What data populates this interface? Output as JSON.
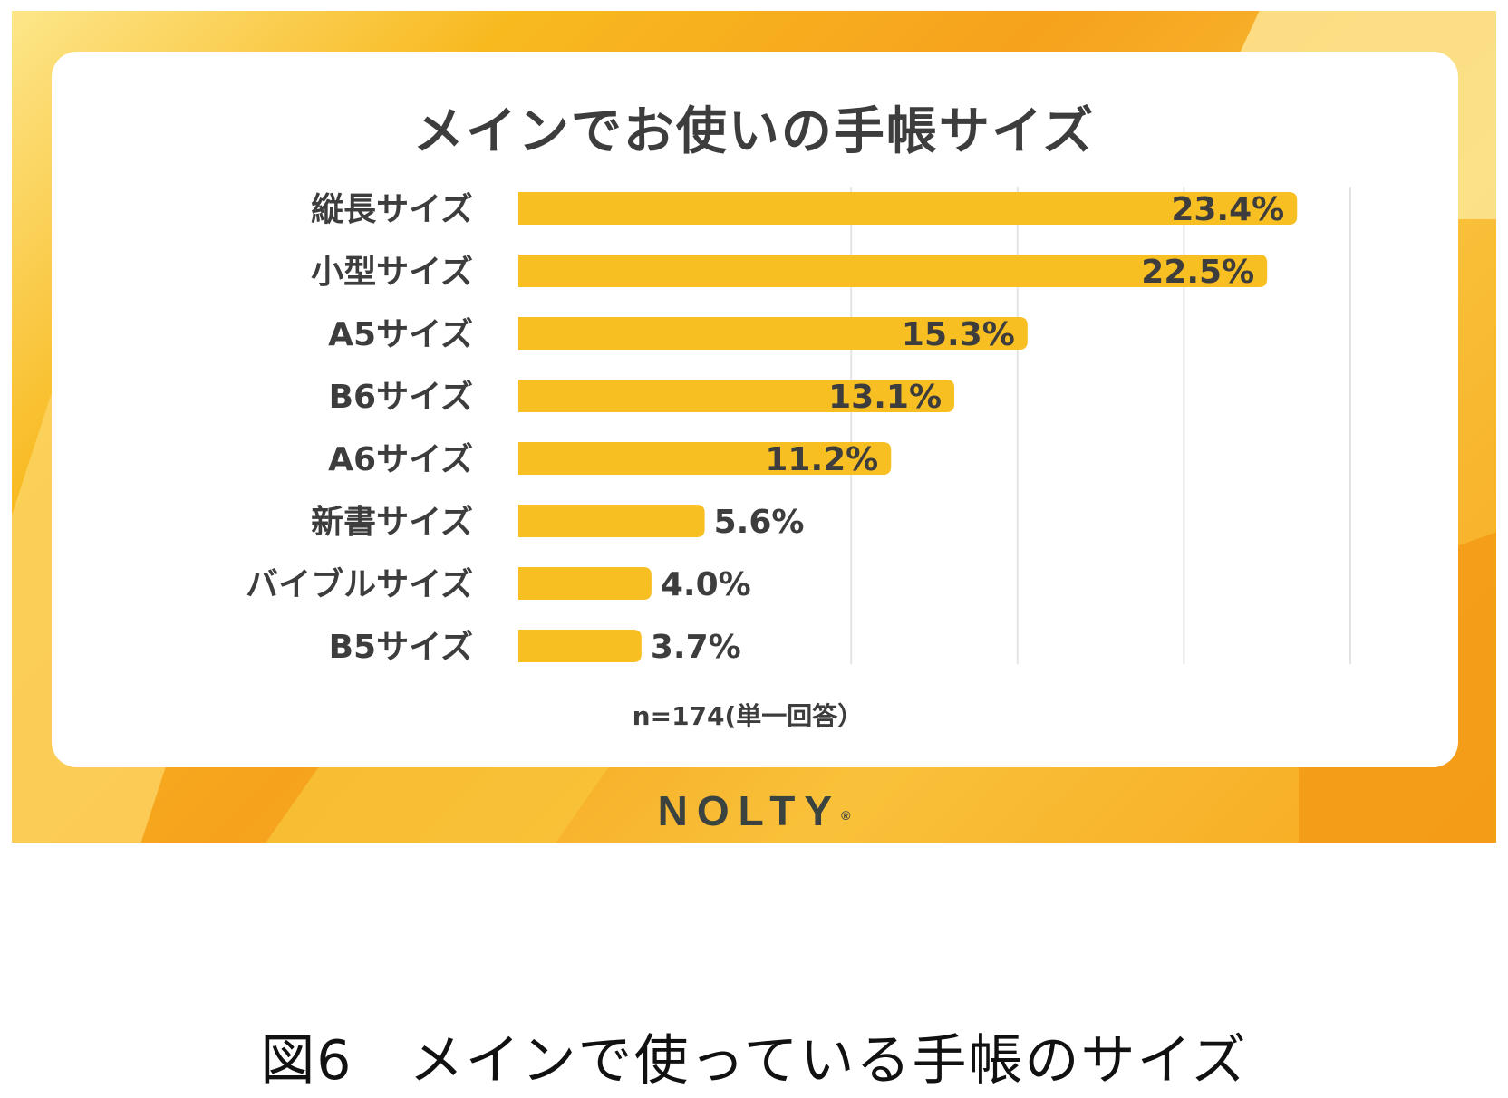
{
  "colors": {
    "bar": "#f8bf22",
    "grid": "#e4e4e4",
    "text_dark": "#3d3d3d",
    "card": "#ffffff"
  },
  "logo": "NOLTY",
  "logo_mark": "®",
  "caption": "図6　メインで使っている手帳のサイズ",
  "chart_data": {
    "type": "bar",
    "orientation": "horizontal",
    "title": "メインでお使いの手帳サイズ",
    "categories": [
      "縦長サイズ",
      "小型サイズ",
      "A5サイズ",
      "B6サイズ",
      "A6サイズ",
      "新書サイズ",
      "バイブルサイズ",
      "B5サイズ"
    ],
    "values": [
      23.4,
      22.5,
      15.3,
      13.1,
      11.2,
      5.6,
      4.0,
      3.7
    ],
    "data_labels": [
      "23.4%",
      "22.5%",
      "15.3%",
      "13.1%",
      "11.2%",
      "5.6%",
      "4.0%",
      "3.7%"
    ],
    "xlim": [
      0,
      25
    ],
    "x_gridlines": [
      10,
      15,
      20,
      25
    ],
    "note": "n=174(単一回答）",
    "legend": "none"
  }
}
